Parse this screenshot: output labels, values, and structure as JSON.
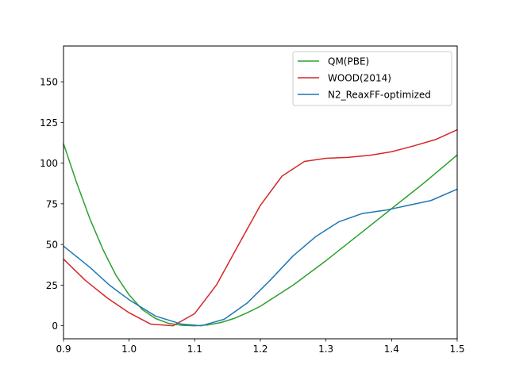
{
  "chart_data": {
    "type": "line",
    "title": "",
    "xlabel": "",
    "ylabel": "",
    "xlim": [
      0.9,
      1.5
    ],
    "ylim": [
      -8,
      172
    ],
    "xticks": [
      0.9,
      1.0,
      1.1,
      1.2,
      1.3,
      1.4,
      1.5
    ],
    "xtick_labels": [
      "0.9",
      "1.0",
      "1.1",
      "1.2",
      "1.3",
      "1.4",
      "1.5"
    ],
    "yticks": [
      0,
      25,
      50,
      75,
      100,
      125,
      150
    ],
    "ytick_labels": [
      "0",
      "25",
      "50",
      "75",
      "100",
      "125",
      "150"
    ],
    "grid": false,
    "legend_position": "top-right",
    "series": [
      {
        "name": "QM(PBE)",
        "color": "#2ca02c",
        "x": [
          0.9,
          0.92,
          0.94,
          0.96,
          0.98,
          1.0,
          1.02,
          1.04,
          1.06,
          1.08,
          1.1,
          1.12,
          1.14,
          1.16,
          1.18,
          1.2,
          1.25,
          1.3,
          1.35,
          1.4,
          1.45,
          1.5
        ],
        "y": [
          112,
          88,
          66,
          47,
          31,
          19,
          10,
          4.5,
          1.5,
          0.3,
          0,
          0.5,
          2,
          4.5,
          8,
          12,
          25,
          40,
          56,
          72,
          88,
          105
        ]
      },
      {
        "name": "WOOD(2014)",
        "color": "#d62728",
        "x": [
          0.9,
          0.933,
          0.967,
          1.0,
          1.033,
          1.067,
          1.1,
          1.133,
          1.167,
          1.2,
          1.233,
          1.267,
          1.3,
          1.333,
          1.367,
          1.4,
          1.433,
          1.467,
          1.5
        ],
        "y": [
          41,
          28,
          17,
          8,
          1,
          0,
          7.5,
          25,
          50,
          74,
          92,
          101,
          103,
          103.5,
          104.8,
          107,
          110.5,
          114.5,
          120.5
        ]
      },
      {
        "name": "N2_ReaxFF-optimized",
        "color": "#1f77b4",
        "x": [
          0.9,
          0.94,
          0.97,
          1.0,
          1.04,
          1.08,
          1.11,
          1.145,
          1.18,
          1.215,
          1.25,
          1.285,
          1.32,
          1.355,
          1.39,
          1.425,
          1.46,
          1.5
        ],
        "y": [
          49,
          36,
          25,
          16,
          6,
          1,
          0,
          4,
          14,
          28,
          43,
          55,
          64,
          69,
          71,
          74,
          77,
          84
        ]
      }
    ]
  }
}
